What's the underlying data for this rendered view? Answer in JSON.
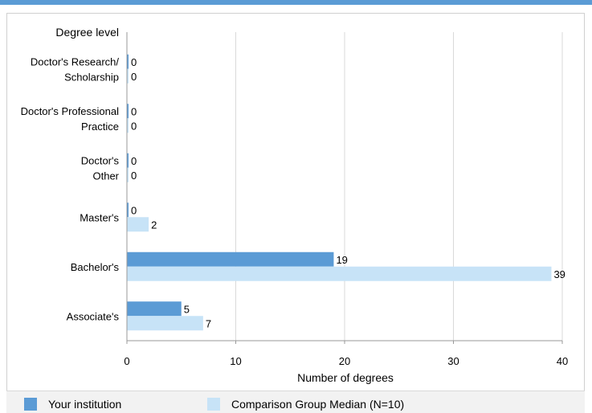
{
  "chart_data": {
    "type": "bar",
    "orientation": "horizontal",
    "title": "",
    "ylabel": "Degree level",
    "xlabel": "Number of degrees",
    "categories": [
      [
        "Doctor's Research/",
        "Scholarship"
      ],
      [
        "Doctor's Professional",
        "Practice"
      ],
      [
        "Doctor's",
        "Other"
      ],
      [
        "Master's"
      ],
      [
        "Bachelor's"
      ],
      [
        "Associate's"
      ]
    ],
    "series": [
      {
        "name": "Your institution",
        "color": "#5b9bd5",
        "values": [
          0,
          0,
          0,
          0,
          19,
          5
        ]
      },
      {
        "name": "Comparison Group Median (N=10)",
        "color": "#c7e3f7",
        "values": [
          0,
          0,
          0,
          2,
          39,
          7
        ]
      }
    ],
    "xlim": [
      0,
      40
    ],
    "xticks": [
      0,
      10,
      20,
      30,
      40
    ],
    "grid": true,
    "legend_position": "bottom"
  },
  "legend": {
    "items": [
      {
        "label": "Your institution",
        "color": "#5b9bd5"
      },
      {
        "label": "Comparison Group Median (N=10)",
        "color": "#c7e3f7"
      }
    ]
  }
}
